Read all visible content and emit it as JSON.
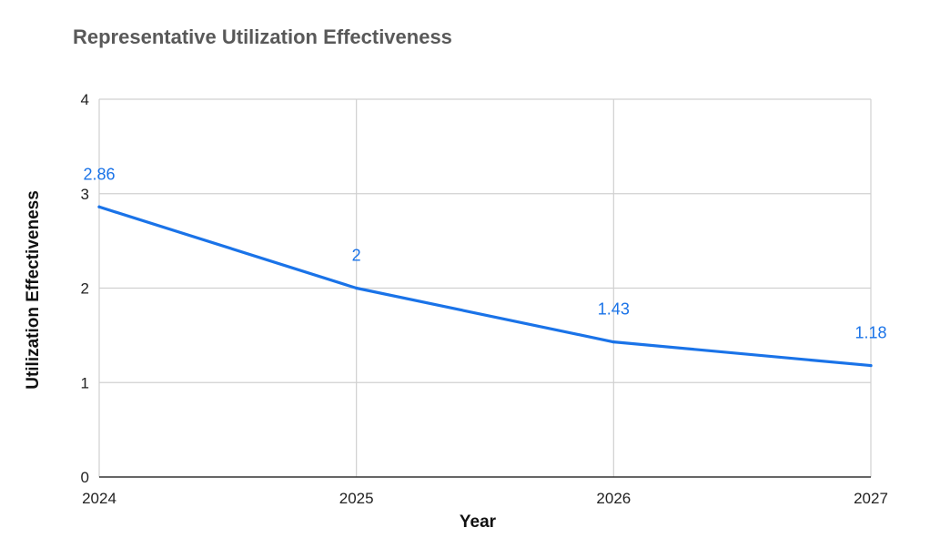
{
  "chart_data": {
    "type": "line",
    "title": "Representative Utilization Effectiveness",
    "xlabel": "Year",
    "ylabel": "Utilization Effectiveness",
    "categories": [
      "2024",
      "2025",
      "2026",
      "2027"
    ],
    "series": [
      {
        "values": [
          2.86,
          2,
          1.43,
          1.18
        ],
        "labels": [
          "2.86",
          "2",
          "1.43",
          "1.18"
        ],
        "color": "#1a73e8"
      }
    ],
    "ylim": [
      0,
      4
    ],
    "yticks": [
      "0",
      "1",
      "2",
      "3",
      "4"
    ],
    "grid": true,
    "legend": "none"
  }
}
